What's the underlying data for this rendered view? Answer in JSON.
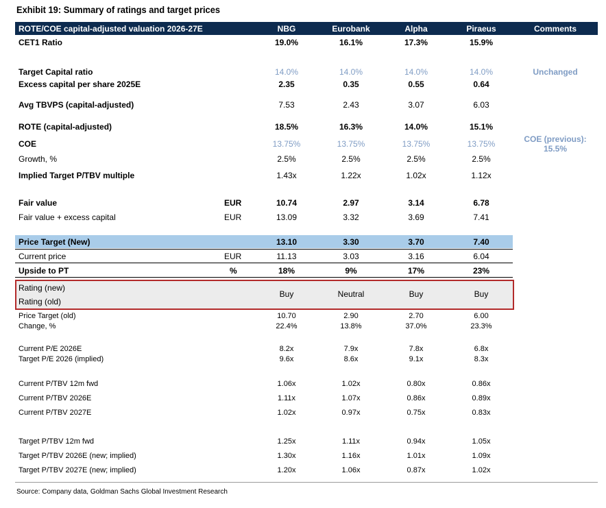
{
  "title": "Exhibit 19: Summary of ratings and target prices",
  "header": {
    "label": "ROTE/COE capital-adjusted valuation 2026-27E",
    "banks": [
      "NBG",
      "Eurobank",
      "Alpha",
      "Piraeus"
    ],
    "comments": "Comments"
  },
  "rows": {
    "cet1": {
      "label": "CET1 Ratio",
      "values": [
        "19.0%",
        "16.1%",
        "17.3%",
        "15.9%"
      ]
    },
    "target_capital": {
      "label": "Target Capital ratio",
      "values": [
        "14.0%",
        "14.0%",
        "14.0%",
        "14.0%"
      ],
      "comment": "Unchanged"
    },
    "excess_capital": {
      "label": "Excess capital per share 2025E",
      "values": [
        "2.35",
        "0.35",
        "0.55",
        "0.64"
      ]
    },
    "avg_tbvps": {
      "label": "Avg TBVPS (capital-adjusted)",
      "values": [
        "7.53",
        "2.43",
        "3.07",
        "6.03"
      ]
    },
    "rote": {
      "label": "ROTE (capital-adjusted)",
      "values": [
        "18.5%",
        "16.3%",
        "14.0%",
        "15.1%"
      ]
    },
    "coe": {
      "label": "COE",
      "values": [
        "13.75%",
        "13.75%",
        "13.75%",
        "13.75%"
      ],
      "comment": "COE (previous): 15.5%"
    },
    "growth": {
      "label": "Growth, %",
      "values": [
        "2.5%",
        "2.5%",
        "2.5%",
        "2.5%"
      ]
    },
    "implied_ptbv": {
      "label": "Implied Target P/TBV multiple",
      "values": [
        "1.43x",
        "1.22x",
        "1.02x",
        "1.12x"
      ]
    },
    "fair_value": {
      "label": "Fair value",
      "unit": "EUR",
      "values": [
        "10.74",
        "2.97",
        "3.14",
        "6.78"
      ]
    },
    "fair_value_excess": {
      "label": "Fair value + excess capital",
      "unit": "EUR",
      "values": [
        "13.09",
        "3.32",
        "3.69",
        "7.41"
      ]
    },
    "pt_new": {
      "label": "Price Target (New)",
      "values": [
        "13.10",
        "3.30",
        "3.70",
        "7.40"
      ]
    },
    "current_price": {
      "label": "Current price",
      "unit": "EUR",
      "values": [
        "11.13",
        "3.03",
        "3.16",
        "6.04"
      ]
    },
    "upside": {
      "label": "Upside to PT",
      "unit": "%",
      "values": [
        "18%",
        "9%",
        "17%",
        "23%"
      ]
    },
    "rating": {
      "label_new": "Rating (new)",
      "label_old": "Rating (old)",
      "values": [
        "Buy",
        "Neutral",
        "Buy",
        "Buy"
      ]
    },
    "pt_old": {
      "label": "Price Target (old)",
      "values": [
        "10.70",
        "2.90",
        "2.70",
        "6.00"
      ]
    },
    "change": {
      "label": "Change, %",
      "values": [
        "22.4%",
        "13.8%",
        "37.0%",
        "23.3%"
      ]
    },
    "pe_2026": {
      "label": "Current P/E 2026E",
      "values": [
        "8.2x",
        "7.9x",
        "7.8x",
        "6.8x"
      ]
    },
    "target_pe": {
      "label": "Target P/E 2026 (implied)",
      "values": [
        "9.6x",
        "8.6x",
        "9.1x",
        "8.3x"
      ]
    },
    "ptbv_12m": {
      "label": "Current P/TBV 12m fwd",
      "values": [
        "1.06x",
        "1.02x",
        "0.80x",
        "0.86x"
      ]
    },
    "ptbv_2026": {
      "label": "Current P/TBV 2026E",
      "values": [
        "1.11x",
        "1.07x",
        "0.86x",
        "0.89x"
      ]
    },
    "ptbv_2027": {
      "label": "Current P/TBV 2027E",
      "values": [
        "1.02x",
        "0.97x",
        "0.75x",
        "0.83x"
      ]
    },
    "tptbv_12m": {
      "label": "Target P/TBV 12m fwd",
      "values": [
        "1.25x",
        "1.11x",
        "0.94x",
        "1.05x"
      ]
    },
    "tptbv_2026": {
      "label": "Target P/TBV 2026E (new; implied)",
      "values": [
        "1.30x",
        "1.16x",
        "1.01x",
        "1.09x"
      ]
    },
    "tptbv_2027": {
      "label": "Target P/TBV 2027E (new; implied)",
      "values": [
        "1.20x",
        "1.06x",
        "0.87x",
        "1.02x"
      ]
    }
  },
  "source": "Source: Company data, Goldman Sachs Global Investment Research",
  "colors": {
    "header_bg": "#0d2b4f",
    "highlight": "#a9cce9",
    "accent_text": "#7f9cc4",
    "rating_border": "#b32a2a"
  }
}
